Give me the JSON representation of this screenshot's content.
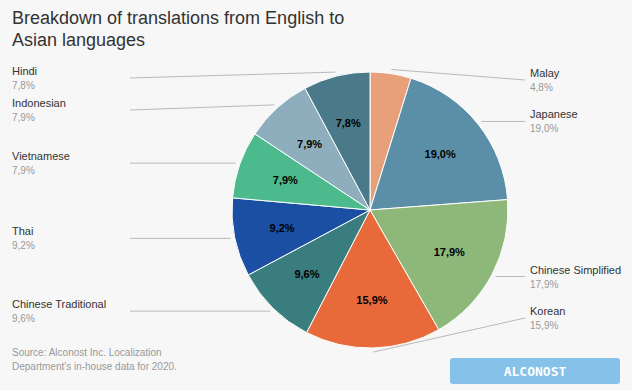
{
  "chart_data": {
    "type": "pie",
    "title": "Breakdown of translations from English to\nAsian languages",
    "categories": [
      "Malay",
      "Japanese",
      "Chinese Simplified",
      "Korean",
      "Chinese Traditional",
      "Thai",
      "Vietnamese",
      "Indonesian",
      "Hindi"
    ],
    "values": [
      4.8,
      19.0,
      17.9,
      15.9,
      9.6,
      9.2,
      7.9,
      7.9,
      7.8
    ],
    "value_labels": [
      "4,8%",
      "19,0%",
      "17,9%",
      "15,9%",
      "9,6%",
      "9,2%",
      "7,9%",
      "7,9%",
      "7,8%"
    ],
    "colors": [
      "#e8a07a",
      "#5b8fa8",
      "#8db87a",
      "#e8693a",
      "#3a7d7e",
      "#1a4fa3",
      "#4cba8c",
      "#8faebd",
      "#4a7a8a"
    ],
    "data_labels": true,
    "annotations": [
      "Source: Alconost Inc. Localization\nDepartment's in-house data for 2020.",
      "ALCONOST"
    ]
  }
}
